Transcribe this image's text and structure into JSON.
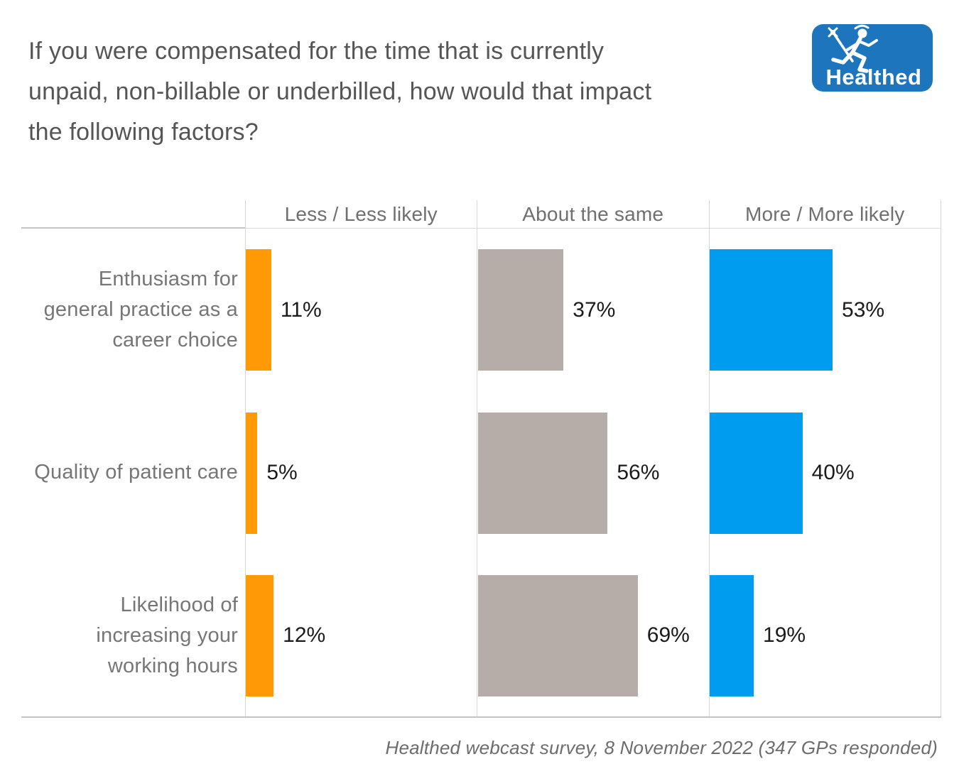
{
  "header": {
    "title": "If you were compensated for the time that is currently unpaid, non-billable or underbilled, how would that impact the following factors?"
  },
  "logo": {
    "text": "Healthed",
    "background_color": "#1d76bd",
    "icon": "hermes-runner-icon"
  },
  "chart_data": {
    "type": "bar",
    "orientation": "horizontal",
    "layout": "trellis-columns",
    "title": "If you were compensated for the time that is currently unpaid, non-billable or underbilled, how would that impact the following factors?",
    "categories": [
      "Enthusiasm for general practice as a career choice",
      "Quality of patient care",
      "Likelihood of increasing your working hours"
    ],
    "series": [
      {
        "name": "Less / Less likely",
        "color": "#ff9905",
        "values": [
          11,
          5,
          12
        ]
      },
      {
        "name": "About the same",
        "color": "#b6ada8",
        "values": [
          37,
          56,
          69
        ]
      },
      {
        "name": "More / More likely",
        "color": "#009cf0",
        "values": [
          53,
          40,
          19
        ]
      }
    ],
    "value_format": "percent",
    "xlim": [
      0,
      100
    ],
    "grid": "panel-borders-only",
    "legend_position": "column-headers",
    "source_note": "Healthed webcast survey, 8 November 2022 (347 GPs responded)"
  },
  "footer": {
    "text": "Healthed webcast survey, 8 November 2022 (347 GPs responded)"
  },
  "colors": {
    "line_strong": "#c4c4c4",
    "line_light": "#d8d8d8",
    "title_text": "#555555",
    "label_text": "#767676",
    "value_text": "#1b1b1b"
  }
}
